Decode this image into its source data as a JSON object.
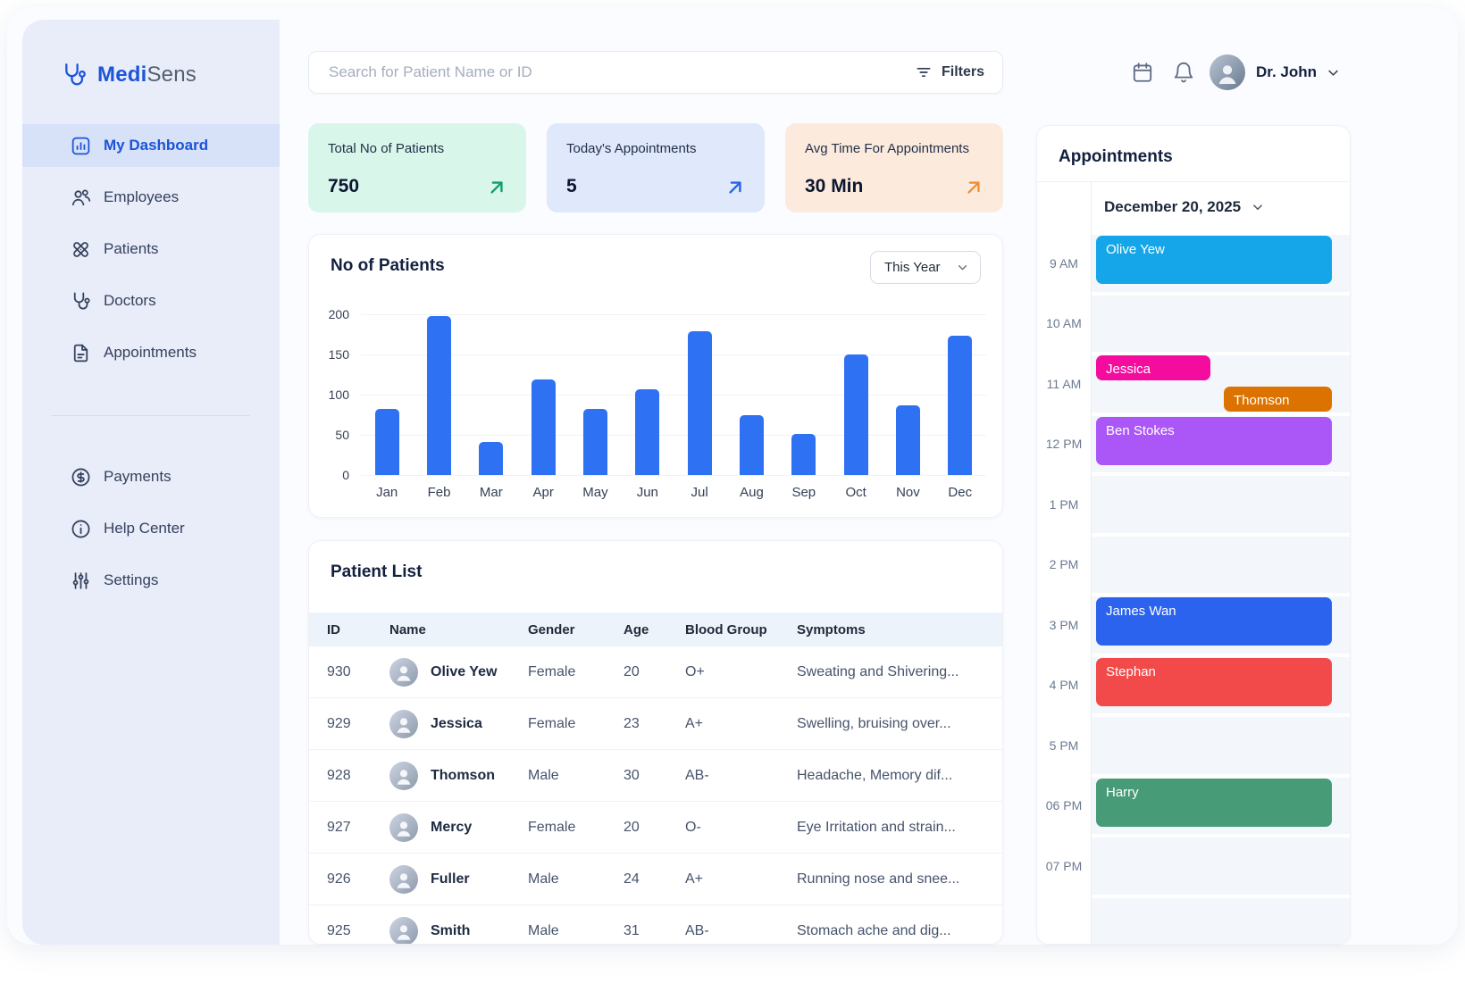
{
  "brand": {
    "name_primary": "Medi",
    "name_secondary": "Sens"
  },
  "topbar": {
    "search_placeholder": "Search for Patient Name or ID",
    "filters_label": "Filters",
    "user_name": "Dr. John"
  },
  "sidebar": {
    "items": [
      {
        "label": "My Dashboard",
        "icon": "dashboard-icon",
        "active": true
      },
      {
        "label": "Employees",
        "icon": "employees-icon",
        "active": false
      },
      {
        "label": "Patients",
        "icon": "patients-icon",
        "active": false
      },
      {
        "label": "Doctors",
        "icon": "doctors-icon",
        "active": false
      },
      {
        "label": "Appointments",
        "icon": "appointments-icon",
        "active": false
      }
    ],
    "footer_items": [
      {
        "label": "Payments",
        "icon": "payments-icon",
        "active": false
      },
      {
        "label": "Help Center",
        "icon": "help-icon",
        "active": false
      },
      {
        "label": "Settings",
        "icon": "settings-icon",
        "active": false
      }
    ]
  },
  "stats": [
    {
      "label": "Total No of Patients",
      "value": "750",
      "bg": "#d9f6ea",
      "accent": "#0f9e6d"
    },
    {
      "label": "Today's Appointments",
      "value": "5",
      "bg": "#e0e8fb",
      "accent": "#2563eb"
    },
    {
      "label": "Avg Time For Appointments",
      "value": "30 Min",
      "bg": "#fcebdc",
      "accent": "#ef8f35"
    }
  ],
  "chart_data": {
    "type": "bar",
    "title": "No of Patients",
    "range_label": "This Year",
    "categories": [
      "Jan",
      "Feb",
      "Mar",
      "Apr",
      "May",
      "Jun",
      "Jul",
      "Aug",
      "Sep",
      "Oct",
      "Nov",
      "Dec"
    ],
    "values": [
      82,
      198,
      41,
      119,
      82,
      107,
      179,
      75,
      51,
      150,
      87,
      173
    ],
    "xlabel": "",
    "ylabel": "",
    "ylim": [
      0,
      200
    ],
    "yticks": [
      0,
      50,
      100,
      150,
      200
    ],
    "grid": true,
    "bar_color": "#2e71f2"
  },
  "patient_list": {
    "title": "Patient List",
    "columns": [
      "ID",
      "Name",
      "Gender",
      "Age",
      "Blood Group",
      "Symptoms"
    ],
    "rows": [
      {
        "id": "930",
        "name": "Olive Yew",
        "gender": "Female",
        "age": "20",
        "blood": "O+",
        "symptoms": "Sweating and Shivering..."
      },
      {
        "id": "929",
        "name": "Jessica",
        "gender": "Female",
        "age": "23",
        "blood": "A+",
        "symptoms": "Swelling, bruising over..."
      },
      {
        "id": "928",
        "name": "Thomson",
        "gender": "Male",
        "age": "30",
        "blood": "AB-",
        "symptoms": "Headache, Memory dif..."
      },
      {
        "id": "927",
        "name": "Mercy",
        "gender": "Female",
        "age": "20",
        "blood": "O-",
        "symptoms": "Eye Irritation and strain..."
      },
      {
        "id": "926",
        "name": "Fuller",
        "gender": "Male",
        "age": "24",
        "blood": "A+",
        "symptoms": "Running nose and snee..."
      },
      {
        "id": "925",
        "name": "Smith",
        "gender": "Male",
        "age": "31",
        "blood": "AB-",
        "symptoms": "Stomach ache and dig..."
      }
    ]
  },
  "appointments": {
    "title": "Appointments",
    "date_label": "December 20, 2025",
    "times": [
      "9 AM",
      "10 AM",
      "11 AM",
      "12 PM",
      "1 PM",
      "2 PM",
      "3 PM",
      "4 PM",
      "5 PM",
      "06 PM",
      "07 PM"
    ],
    "events": [
      {
        "name": "Olive Yew",
        "color": "#15a6e9",
        "row": 0,
        "layout": "full"
      },
      {
        "name": "Jessica",
        "color": "#f30c9d",
        "row": 2,
        "layout": "half-tl"
      },
      {
        "name": "Thomson",
        "color": "#dc7301",
        "row": 2,
        "layout": "half-br"
      },
      {
        "name": "Ben Stokes",
        "color": "#ab57f8",
        "row": 3,
        "layout": "full"
      },
      {
        "name": "James Wan",
        "color": "#2b63ee",
        "row": 6,
        "layout": "full"
      },
      {
        "name": "Stephan",
        "color": "#f24a4a",
        "row": 7,
        "layout": "full"
      },
      {
        "name": "Harry",
        "color": "#479b77",
        "row": 9,
        "layout": "full"
      }
    ]
  }
}
